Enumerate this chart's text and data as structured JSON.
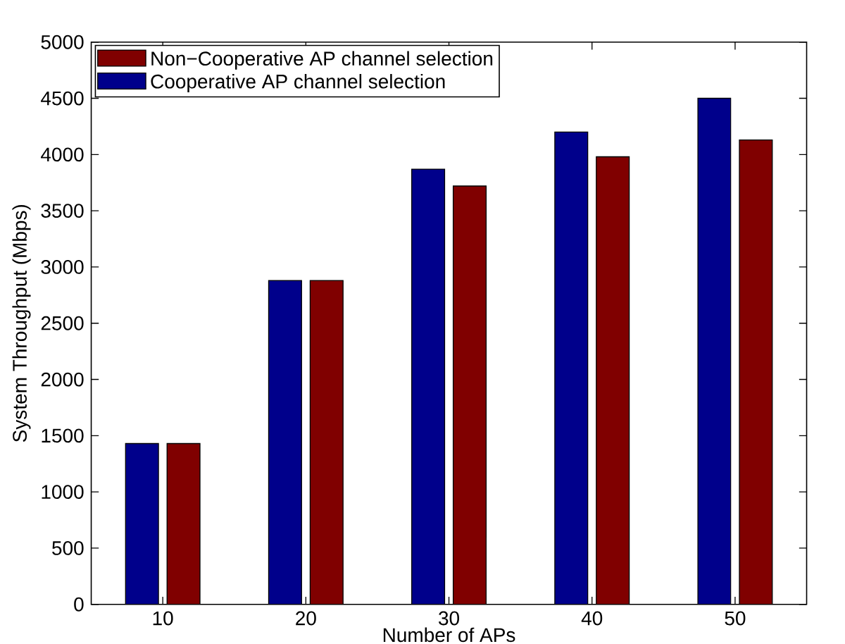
{
  "chart_data": {
    "type": "bar",
    "xlabel": "Number of APs",
    "ylabel": "System Throughput (Mbps)",
    "categories": [
      "10",
      "20",
      "30",
      "40",
      "50"
    ],
    "series": [
      {
        "name": "Cooperative AP channel selection",
        "color": "#00008b",
        "values": [
          1430,
          2880,
          3870,
          4200,
          4500
        ]
      },
      {
        "name": "Non−Cooperative AP channel selection",
        "color": "#800000",
        "values": [
          1430,
          2880,
          3720,
          3980,
          4130
        ]
      }
    ],
    "ylim": [
      0,
      5000
    ],
    "yticks": [
      0,
      500,
      1000,
      1500,
      2000,
      2500,
      3000,
      3500,
      4000,
      4500,
      5000
    ],
    "grid": false,
    "legend": "top left"
  }
}
